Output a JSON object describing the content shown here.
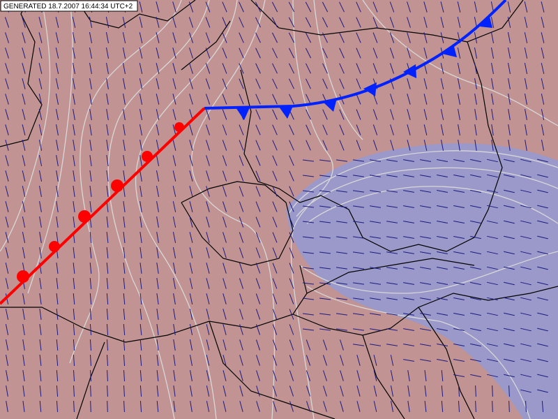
{
  "header": {
    "generated": "GENERATED 18.7.2007 16:44:34 UTC+2"
  }
}
